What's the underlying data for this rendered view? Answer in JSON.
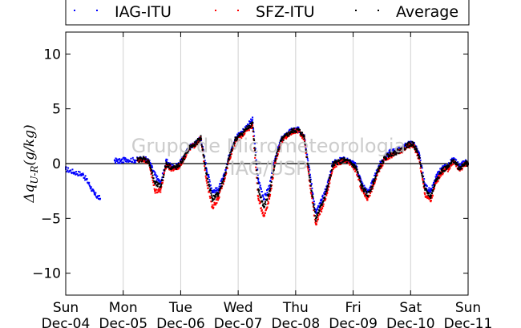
{
  "chart_data": {
    "type": "scatter",
    "ylabel": "Δq_{U-R}(g/kg)",
    "ylim": [
      -12,
      12
    ],
    "yticks": [
      10,
      5,
      0,
      -5,
      -10
    ],
    "ytick_labels": [
      "10",
      "5",
      "0",
      "−5",
      "−10"
    ],
    "xlim": [
      0,
      7
    ],
    "x_unit": "days since Sun Dec-04",
    "xticks": [
      {
        "day": "Sun",
        "date": "Dec-04"
      },
      {
        "day": "Mon",
        "date": "Dec-05"
      },
      {
        "day": "Tue",
        "date": "Dec-06"
      },
      {
        "day": "Wed",
        "date": "Dec-07"
      },
      {
        "day": "Thu",
        "date": "Dec-08"
      },
      {
        "day": "Fri",
        "date": "Dec-09"
      },
      {
        "day": "Sat",
        "date": "Dec-10"
      },
      {
        "day": "Sun",
        "date": "Dec-11"
      }
    ],
    "grid": "vertical",
    "zero_line": true,
    "legend_position": "top",
    "annotations": [
      "Grupo de Micrometeorologia",
      "IAG/USP"
    ],
    "series": [
      {
        "name": "IAG-ITU",
        "color": "#0000ff",
        "x": [
          0.0,
          0.15,
          0.3,
          0.4,
          0.5,
          0.6,
          0.7,
          0.85,
          0.95,
          1.05,
          1.2,
          1.35,
          1.45,
          1.55,
          1.65,
          1.75,
          1.85,
          1.95,
          2.05,
          2.15,
          2.25,
          2.35,
          2.45,
          2.55,
          2.65,
          2.75,
          2.85,
          2.95,
          3.05,
          3.15,
          3.25,
          3.35,
          3.45,
          3.55,
          3.65,
          3.75,
          3.85,
          3.95,
          4.05,
          4.15,
          4.25,
          4.35,
          4.45,
          4.55,
          4.65,
          4.75,
          4.85,
          4.95,
          5.05,
          5.15,
          5.25,
          5.35,
          5.45,
          5.55,
          5.65,
          5.75,
          5.85,
          5.95,
          6.05,
          6.15,
          6.25,
          6.35,
          6.45,
          6.55,
          6.65,
          6.75,
          6.85,
          6.95,
          7.0
        ],
        "y": [
          -0.5,
          -0.8,
          -1.0,
          -1.8,
          -2.8,
          -3.2,
          null,
          0.3,
          0.2,
          0.4,
          0.3,
          0.5,
          0.2,
          -1.0,
          -1.8,
          0.2,
          -0.3,
          -0.2,
          0.5,
          1.5,
          1.8,
          2.4,
          -0.5,
          -2.5,
          -2.4,
          -1.2,
          0.8,
          2.4,
          2.8,
          3.4,
          4.0,
          -1.5,
          -3.2,
          -2.0,
          0.6,
          2.2,
          2.7,
          3.1,
          3.1,
          2.6,
          -1.0,
          -4.5,
          -3.4,
          -2.0,
          0.1,
          0.3,
          0.4,
          0.2,
          -0.2,
          -1.8,
          -2.6,
          -1.6,
          -0.2,
          0.6,
          1.1,
          1.2,
          1.4,
          1.8,
          1.9,
          0.8,
          -2.0,
          -2.6,
          -1.2,
          -0.4,
          -0.2,
          0.5,
          -0.3,
          0.2,
          0.0
        ]
      },
      {
        "name": "SFZ-ITU",
        "color": "#ff0000",
        "x": [
          1.25,
          1.35,
          1.45,
          1.55,
          1.65,
          1.75,
          1.85,
          1.95,
          2.05,
          2.15,
          2.25,
          2.35,
          2.45,
          2.55,
          2.65,
          2.75,
          2.85,
          2.95,
          3.05,
          3.15,
          3.25,
          3.35,
          3.45,
          3.55,
          3.65,
          3.75,
          3.85,
          3.95,
          4.05,
          4.15,
          4.25,
          4.35,
          4.45,
          4.55,
          4.65,
          4.75,
          4.85,
          4.95,
          5.05,
          5.15,
          5.25,
          5.35,
          5.45,
          5.55,
          5.65,
          5.75,
          5.85,
          5.95,
          6.05,
          6.15,
          6.25,
          6.35,
          6.45,
          6.55,
          6.65,
          6.75,
          6.85,
          6.95,
          7.0
        ],
        "y": [
          0.3,
          0.4,
          0.1,
          -2.5,
          -2.4,
          -0.2,
          -0.5,
          -0.4,
          0.4,
          1.4,
          1.7,
          2.3,
          -1.5,
          -4.0,
          -3.2,
          -1.6,
          0.5,
          2.0,
          2.5,
          3.0,
          3.5,
          -3.2,
          -4.8,
          -3.0,
          0.3,
          2.0,
          2.5,
          2.9,
          3.0,
          2.3,
          -2.0,
          -5.5,
          -4.2,
          -2.6,
          -0.3,
          0.1,
          0.2,
          0.0,
          -0.6,
          -2.4,
          -3.2,
          -2.0,
          -0.6,
          0.4,
          0.7,
          0.9,
          1.2,
          1.6,
          1.7,
          0.4,
          -2.8,
          -3.4,
          -1.6,
          -0.8,
          -0.5,
          0.2,
          -0.6,
          0.0,
          -0.1
        ]
      },
      {
        "name": "Average",
        "color": "#000000",
        "x": [
          1.25,
          1.35,
          1.45,
          1.55,
          1.65,
          1.75,
          1.85,
          1.95,
          2.05,
          2.15,
          2.25,
          2.35,
          2.45,
          2.55,
          2.65,
          2.75,
          2.85,
          2.95,
          3.05,
          3.15,
          3.25,
          3.35,
          3.45,
          3.55,
          3.65,
          3.75,
          3.85,
          3.95,
          4.05,
          4.15,
          4.25,
          4.35,
          4.45,
          4.55,
          4.65,
          4.75,
          4.85,
          4.95,
          5.05,
          5.15,
          5.25,
          5.35,
          5.45,
          5.55,
          5.65,
          5.75,
          5.85,
          5.95,
          6.05,
          6.15,
          6.25,
          6.35,
          6.45,
          6.55,
          6.65,
          6.75,
          6.85,
          6.95,
          7.0
        ],
        "y": [
          0.3,
          0.45,
          0.15,
          -1.8,
          -2.1,
          0.0,
          -0.4,
          -0.3,
          0.45,
          1.45,
          1.75,
          2.35,
          -1.0,
          -3.2,
          -2.8,
          -1.4,
          0.65,
          2.2,
          2.65,
          3.2,
          3.75,
          -2.4,
          -4.0,
          -2.5,
          0.45,
          2.1,
          2.6,
          3.0,
          3.05,
          2.45,
          -1.5,
          -5.0,
          -3.8,
          -2.3,
          -0.1,
          0.2,
          0.3,
          0.1,
          -0.4,
          -2.1,
          -2.9,
          -1.8,
          -0.4,
          0.5,
          0.9,
          1.05,
          1.3,
          1.7,
          1.8,
          0.6,
          -2.4,
          -3.0,
          -1.4,
          -0.6,
          -0.35,
          0.35,
          -0.45,
          0.1,
          -0.05
        ]
      }
    ]
  }
}
